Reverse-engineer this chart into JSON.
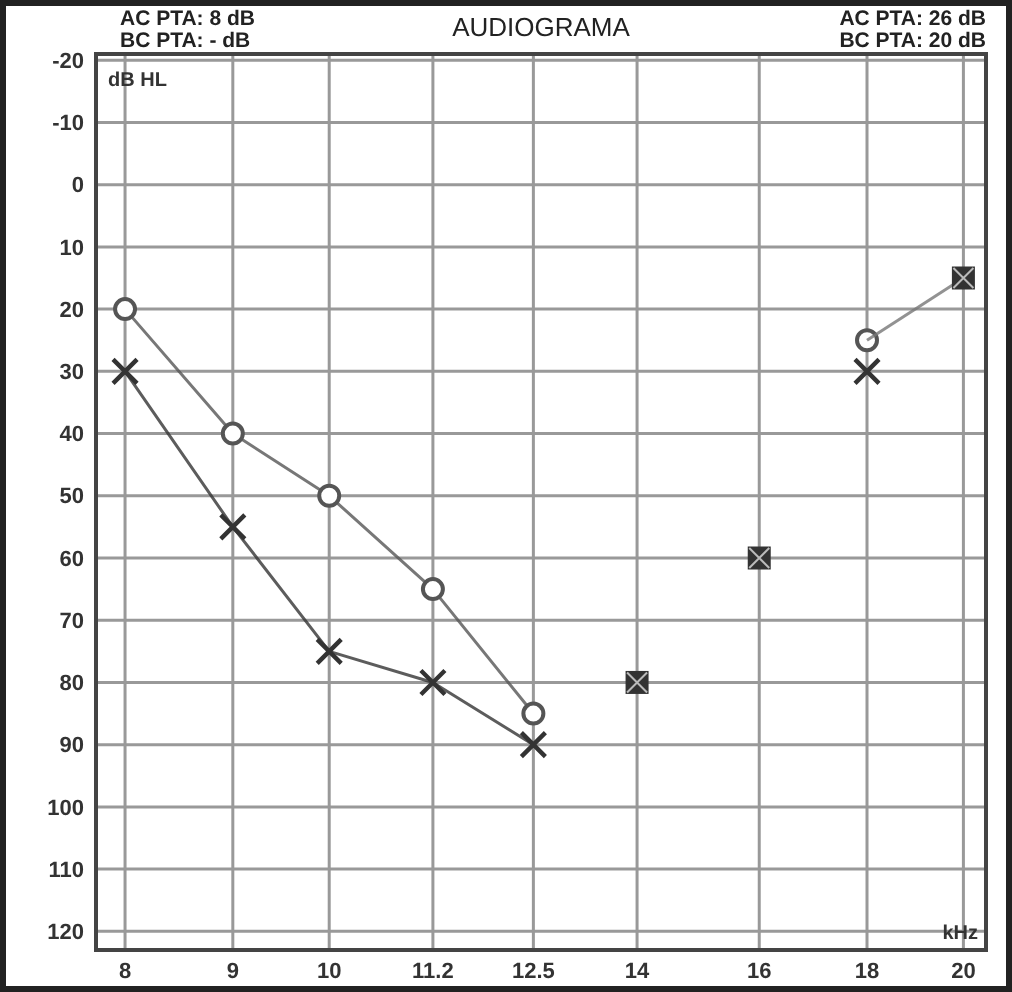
{
  "chart_data": {
    "type": "line",
    "title": "AUDIOGRAMA",
    "annotations": [
      "AC PTA: 8 dB",
      "BC PTA: - dB",
      "AC PTA: 26 dB",
      "BC PTA: 20 dB"
    ],
    "xlabel": "kHz",
    "ylabel": "dB HL",
    "log": "x",
    "xlim": [
      7.75,
      20.5
    ],
    "xticks": [
      8,
      9,
      10,
      11.2,
      12.5,
      14,
      16,
      18,
      20
    ],
    "ylim": [
      123,
      -21
    ],
    "yticks": [
      -20,
      -10,
      0,
      10,
      20,
      30,
      40,
      50,
      60,
      70,
      80,
      90,
      100,
      110,
      120
    ],
    "grid": true,
    "series": [
      {
        "marker": "circle",
        "color": "#555555",
        "x": [
          8,
          9,
          10,
          11.2,
          12.5,
          14,
          16,
          18
        ],
        "values": [
          20,
          40,
          50,
          65,
          85,
          null,
          null,
          25
        ]
      },
      {
        "color": "#777777",
        "x": [
          18,
          20
        ],
        "values": [
          25,
          15
        ]
      },
      {
        "marker": "cross",
        "color": "#333333",
        "x": [
          8,
          9,
          10,
          11.2,
          12.5,
          14,
          16,
          18
        ],
        "values": [
          30,
          55,
          75,
          80,
          90,
          null,
          null,
          30
        ]
      },
      {
        "type": "scatter",
        "marker": "square",
        "color": "#333333",
        "x": [
          14,
          16,
          20
        ],
        "values": [
          80,
          60,
          15
        ]
      }
    ]
  }
}
